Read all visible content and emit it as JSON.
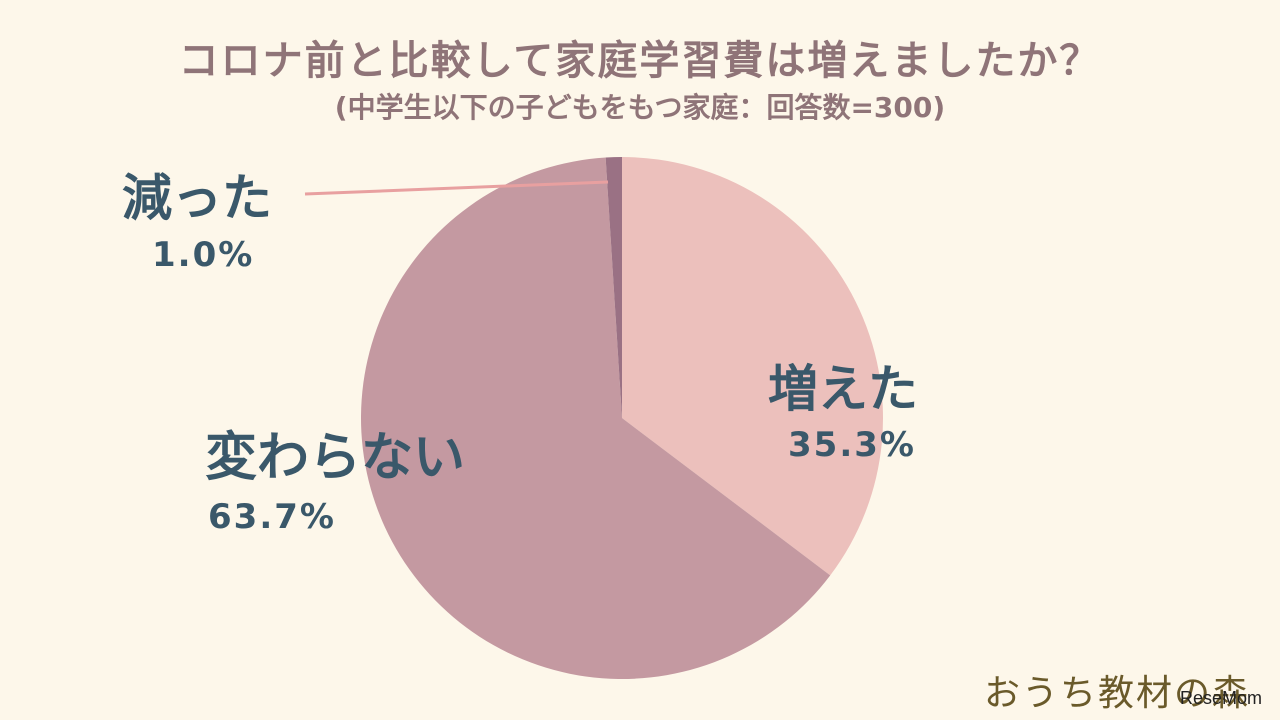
{
  "chart_data": {
    "type": "pie",
    "title": "コロナ前と比較して家庭学習費は増えましたか？",
    "subtitle": "(中学生以下の子どもをもつ家庭：回答数=300)",
    "slices": [
      {
        "label": "増えた",
        "value": 35.3,
        "value_label": "35.3%",
        "color": "#ecc0bc"
      },
      {
        "label": "変わらない",
        "value": 63.7,
        "value_label": "63.7%",
        "color": "#c499a1"
      },
      {
        "label": "減った",
        "value": 1.0,
        "value_label": "1.0%",
        "color": "#9a7184"
      }
    ],
    "start": "12 o'clock",
    "direction": "clockwise",
    "leader_line_color": "#e8a0a0"
  },
  "brand": "おうち教材の森",
  "credit": "ReseMom"
}
